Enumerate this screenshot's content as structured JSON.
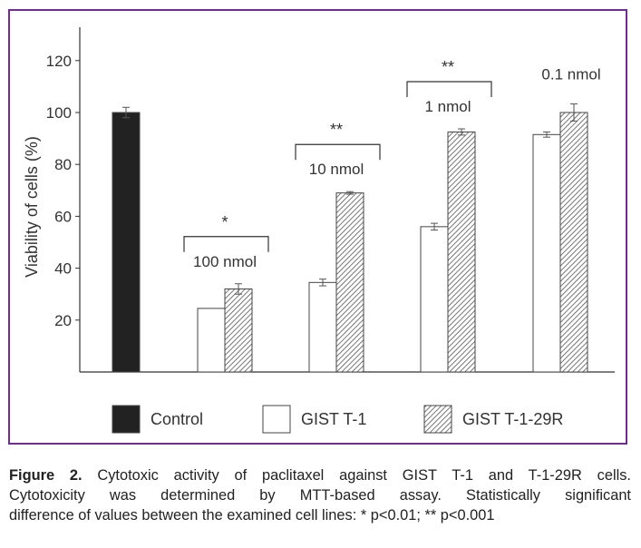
{
  "chart_data": {
    "type": "bar",
    "ylabel": "Viability of cells (%)",
    "ylim": [
      0,
      130
    ],
    "yticks": [
      20,
      40,
      60,
      80,
      100,
      120
    ],
    "grid": false,
    "legend": {
      "placement": "bottom",
      "items": [
        {
          "label": "Control",
          "style": "solid"
        },
        {
          "label": "GIST T-1",
          "style": "open"
        },
        {
          "label": "GIST T-1-29R",
          "style": "hatched"
        }
      ]
    },
    "control": {
      "value": 100,
      "error": 2
    },
    "groups": [
      {
        "concentration": "100 nmol",
        "significance": "*",
        "gist_t1": {
          "value": 24.5,
          "error": 0
        },
        "gist_t1_29r": {
          "value": 32,
          "error": 2
        }
      },
      {
        "concentration": "10 nmol",
        "significance": "**",
        "gist_t1": {
          "value": 34.5,
          "error": 1.3
        },
        "gist_t1_29r": {
          "value": 69,
          "error": 0.5
        }
      },
      {
        "concentration": "1 nmol",
        "significance": "**",
        "gist_t1": {
          "value": 56,
          "error": 1.3
        },
        "gist_t1_29r": {
          "value": 92.5,
          "error": 1.2
        }
      },
      {
        "concentration": "0.1 nmol",
        "significance": "",
        "gist_t1": {
          "value": 91.5,
          "error": 1
        },
        "gist_t1_29r": {
          "value": 100,
          "error": 3.3
        }
      }
    ],
    "colors": {
      "frame": "#6e2d8f",
      "solid": "#222222",
      "stroke": "#444444"
    }
  },
  "caption": {
    "label": "Figure 2.",
    "line1": "Cytotoxic activity of paclitaxel against GIST T-1 and T-1-29R cells.",
    "line2": "Cytotoxicity was determined by MTT-based assay. Statistically significant",
    "line3": "difference of values between the examined cell lines: * p<0.01; ** p<0.001"
  }
}
